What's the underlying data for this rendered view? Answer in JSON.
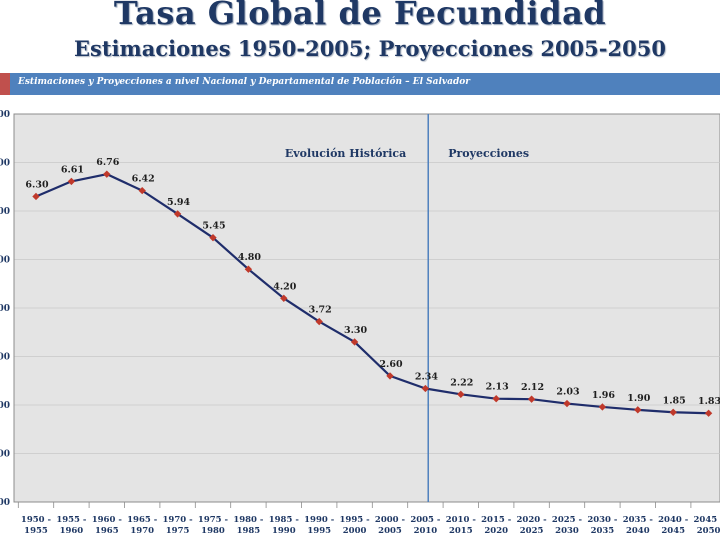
{
  "header": {
    "title": "Tasa Global de Fecundidad",
    "subtitle": "Estimaciones 1950-2005; Proyecciones 2005-2050"
  },
  "banner": {
    "text": "Estimaciones y Proyecciones a nivel  Nacional y Departamental de Población – El Salvador"
  },
  "colors": {
    "title": "#1f3864",
    "banner": "#4f81bd",
    "line": "#1f2d6b",
    "marker": "#c0392b",
    "plot_bg": "#e4e4e4",
    "divider": "#4f81bd"
  },
  "chart_data": {
    "type": "line",
    "title": "Tasa Global de Fecundidad",
    "categories": [
      "1950 - 1955",
      "1955 - 1960",
      "1960 - 1965",
      "1965 - 1970",
      "1970 - 1975",
      "1975 - 1980",
      "1980 - 1985",
      "1985 - 1990",
      "1990 - 1995",
      "1995 - 2000",
      "2000 - 2005",
      "2005 - 2010",
      "2010 - 2015",
      "2015 - 2020",
      "2020 - 2025",
      "2025 - 2030",
      "2030 - 2035",
      "2035 - 2040",
      "2040 - 2045",
      "2045 - 2050"
    ],
    "values": [
      6.3,
      6.61,
      6.76,
      6.42,
      5.94,
      5.45,
      4.8,
      4.2,
      3.72,
      3.3,
      2.6,
      2.34,
      2.22,
      2.13,
      2.12,
      2.03,
      1.96,
      1.9,
      1.85,
      1.83
    ],
    "value_labels": [
      "6.30",
      "6.61",
      "6.76",
      "6.42",
      "5.94",
      "5.45",
      "4.80",
      "4.20",
      "3.72",
      "3.30",
      "2.60",
      "2.34",
      "2.22",
      "2.13",
      "2.12",
      "2.03",
      "1.96",
      "1.90",
      "1.85",
      "1.83"
    ],
    "ylim": [
      0,
      8
    ],
    "ytick_labels": [
      ".00",
      ".00",
      ".00",
      ".00",
      ".00",
      ".00",
      ".00",
      ".00",
      ".00"
    ],
    "divider_after_index": 10,
    "annotations": {
      "historic": "Evolución Histórica",
      "projection": "Proyecciones"
    },
    "xlabel": "",
    "ylabel": ""
  }
}
